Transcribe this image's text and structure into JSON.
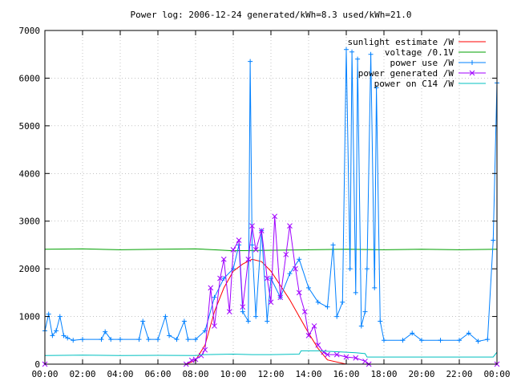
{
  "chart_data": {
    "type": "line",
    "title": "Power log: 2006-12-24 generated/kWh=8.3 used/kWh=21.0",
    "xlabel": "",
    "ylabel": "",
    "xlim": [
      0,
      24
    ],
    "ylim": [
      0,
      7000
    ],
    "grid": true,
    "legend_position": "top-right",
    "x_tick_labels": [
      "00:00",
      "02:00",
      "04:00",
      "06:00",
      "08:00",
      "10:00",
      "12:00",
      "14:00",
      "16:00",
      "18:00",
      "20:00",
      "22:00",
      "00:00"
    ],
    "y_tick_labels": [
      "0",
      "1000",
      "2000",
      "3000",
      "4000",
      "5000",
      "6000",
      "7000"
    ],
    "y_ticks": [
      0,
      1000,
      2000,
      3000,
      4000,
      5000,
      6000,
      7000
    ],
    "series": [
      {
        "name": "sunlight estimate /W",
        "color": "#ff0000",
        "marker": "none",
        "x": [
          0,
          7.5,
          8.0,
          8.5,
          9.0,
          9.5,
          10.0,
          10.5,
          11.0,
          11.5,
          12.0,
          12.5,
          13.0,
          13.5,
          14.0,
          14.5,
          15.0,
          16.0,
          24
        ],
        "y": [
          0,
          0,
          80,
          400,
          1100,
          1600,
          1950,
          2100,
          2200,
          2150,
          1950,
          1650,
          1350,
          1000,
          650,
          330,
          90,
          0,
          0
        ]
      },
      {
        "name": "voltage /0.1V",
        "color": "#00a000",
        "marker": "none",
        "x": [
          0,
          2,
          4,
          6,
          8,
          10,
          12,
          14,
          16,
          18,
          20,
          22,
          24
        ],
        "y": [
          2410,
          2420,
          2400,
          2410,
          2420,
          2380,
          2390,
          2400,
          2410,
          2400,
          2410,
          2400,
          2410
        ]
      },
      {
        "name": "power use /W",
        "color": "#0080ff",
        "marker": "+",
        "x": [
          0,
          0.2,
          0.4,
          0.6,
          0.8,
          1.0,
          1.2,
          1.5,
          2.0,
          3.0,
          3.2,
          3.5,
          4.0,
          5.0,
          5.2,
          5.5,
          6.0,
          6.4,
          6.6,
          7.0,
          7.4,
          7.6,
          8.0,
          8.5,
          9.0,
          9.5,
          10.0,
          10.3,
          10.5,
          10.8,
          10.9,
          11.0,
          11.2,
          11.5,
          11.8,
          12.0,
          12.5,
          13.0,
          13.5,
          14.0,
          14.5,
          15.0,
          15.3,
          15.5,
          15.8,
          16.0,
          16.2,
          16.3,
          16.5,
          16.6,
          16.8,
          17.0,
          17.1,
          17.3,
          17.5,
          17.6,
          17.8,
          18.0,
          19.0,
          19.5,
          20.0,
          21.0,
          22.0,
          22.5,
          23.0,
          23.5,
          23.8,
          24
        ],
        "y": [
          700,
          1050,
          600,
          700,
          1000,
          600,
          550,
          500,
          520,
          520,
          680,
          520,
          520,
          520,
          900,
          520,
          520,
          1000,
          600,
          520,
          900,
          520,
          520,
          700,
          1400,
          1800,
          2000,
          2500,
          1100,
          900,
          6350,
          2500,
          1000,
          2800,
          900,
          1800,
          1400,
          1900,
          2200,
          1600,
          1300,
          1200,
          2500,
          1000,
          1300,
          6600,
          2000,
          6550,
          1500,
          6400,
          800,
          1100,
          2000,
          6500,
          1600,
          5800,
          900,
          500,
          500,
          650,
          500,
          500,
          500,
          650,
          480,
          520,
          2600,
          5900
        ]
      },
      {
        "name": "power generated /W",
        "color": "#a000ff",
        "marker": "x",
        "x": [
          0,
          7.5,
          7.8,
          8.0,
          8.3,
          8.5,
          8.8,
          9.0,
          9.3,
          9.5,
          9.8,
          10.0,
          10.3,
          10.5,
          10.8,
          11.0,
          11.2,
          11.5,
          11.8,
          12.0,
          12.2,
          12.5,
          12.8,
          13.0,
          13.3,
          13.5,
          13.8,
          14.0,
          14.3,
          14.5,
          14.8,
          15.0,
          15.5,
          16.0,
          16.5,
          17.0,
          17.2,
          24
        ],
        "y": [
          0,
          0,
          80,
          100,
          180,
          300,
          1600,
          800,
          1800,
          2200,
          1100,
          2400,
          2600,
          1200,
          2200,
          2900,
          2400,
          2800,
          1800,
          1300,
          3100,
          1400,
          2300,
          2900,
          2000,
          1500,
          1100,
          600,
          800,
          400,
          250,
          200,
          200,
          150,
          130,
          60,
          0,
          0
        ]
      },
      {
        "name": "power on C14 /W",
        "color": "#00c0c0",
        "marker": "none",
        "x": [
          0,
          2,
          4,
          6,
          8,
          8.5,
          10,
          11,
          12,
          13.5,
          13.6,
          14.5,
          15.5,
          16.5,
          17.0,
          17.1,
          18.5,
          20,
          22,
          23.8,
          24
        ],
        "y": [
          180,
          190,
          180,
          185,
          180,
          200,
          210,
          200,
          200,
          210,
          280,
          280,
          260,
          240,
          220,
          150,
          150,
          150,
          150,
          150,
          250
        ]
      }
    ]
  }
}
